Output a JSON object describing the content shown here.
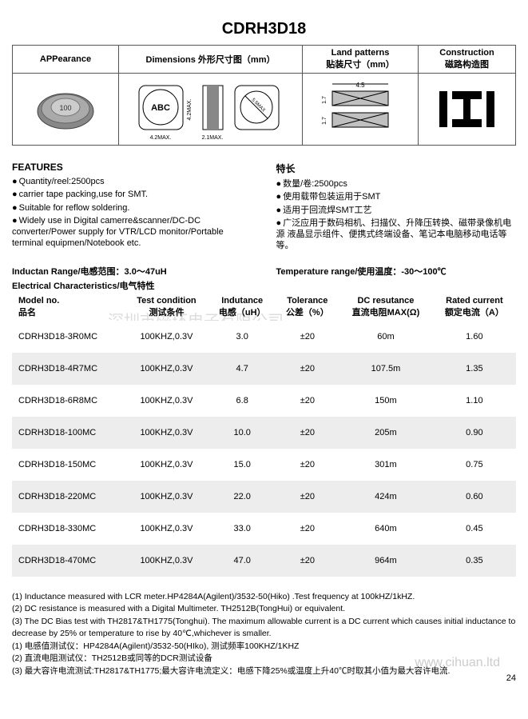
{
  "title": "CDRH3D18",
  "header": {
    "appearance": "APPearance",
    "dimensions": "Dimensions 外形尺寸图（mm）",
    "land": "Land patterns\n贴装尺寸（mm）",
    "construction": "Construction\n磁路构造图"
  },
  "dim_labels": {
    "abc": "ABC",
    "w": "4.2MAX.",
    "h": "4.2MAX.",
    "side_w": "2.1MAX.",
    "max55": "5.5MAX",
    "land_w": "4.5",
    "land_h1": "1.7",
    "land_h2": "1.7"
  },
  "features_en_head": "FEATURES",
  "features_en": [
    "Quantity/reel:2500pcs",
    "carrier tape packing,use for SMT.",
    "Suitable for reflow soldering.",
    "Widely use in Digital camerre&scanner/DC-DC converter/Power supply for VTR/LCD monitor/Portable terminal equipmen/Notebook etc."
  ],
  "features_cn_head": "特长",
  "features_cn": [
    "数量/卷:2500pcs",
    "使用载带包装运用于SMT",
    "适用于回流焊SMT工艺",
    "广泛应用于数码相机、扫描仪、升降压转换、磁带录像机电源 液晶显示组件、便携式终端设备、笔记本电脑移动电话等等。"
  ],
  "inductance_range": "Inductan Range/电感范围：3.0～47uH",
  "temp_range": "Temperature range/使用温度：-30～100℃",
  "elec_head": "Electrical Characteristics/电气特性",
  "columns": [
    {
      "l1": "Model no.",
      "l2": "品名"
    },
    {
      "l1": "Test condition",
      "l2": "测试条件"
    },
    {
      "l1": "Indutance",
      "l2": "电感（uH）"
    },
    {
      "l1": "Tolerance",
      "l2": "公差（%）"
    },
    {
      "l1": "DC resutance",
      "l2": "直流电阻MAX(Ω)"
    },
    {
      "l1": "Rated current",
      "l2": "额定电流（A）"
    }
  ],
  "rows": [
    {
      "model": "CDRH3D18-3R0MC",
      "cond": "100KHZ,0.3V",
      "ind": "3.0",
      "tol": "±20",
      "dcr": "60m",
      "rated": "1.60"
    },
    {
      "model": "CDRH3D18-4R7MC",
      "cond": "100KHZ,0.3V",
      "ind": "4.7",
      "tol": "±20",
      "dcr": "107.5m",
      "rated": "1.35"
    },
    {
      "model": "CDRH3D18-6R8MC",
      "cond": "100KHZ,0.3V",
      "ind": "6.8",
      "tol": "±20",
      "dcr": "150m",
      "rated": "1.10"
    },
    {
      "model": "CDRH3D18-100MC",
      "cond": "100KHZ,0.3V",
      "ind": "10.0",
      "tol": "±20",
      "dcr": "205m",
      "rated": "0.90"
    },
    {
      "model": "CDRH3D18-150MC",
      "cond": "100KHZ,0.3V",
      "ind": "15.0",
      "tol": "±20",
      "dcr": "301m",
      "rated": "0.75"
    },
    {
      "model": "CDRH3D18-220MC",
      "cond": "100KHZ,0.3V",
      "ind": "22.0",
      "tol": "±20",
      "dcr": "424m",
      "rated": "0.60"
    },
    {
      "model": "CDRH3D18-330MC",
      "cond": "100KHZ,0.3V",
      "ind": "33.0",
      "tol": "±20",
      "dcr": "640m",
      "rated": "0.45"
    },
    {
      "model": "CDRH3D18-470MC",
      "cond": "100KHZ,0.3V",
      "ind": "47.0",
      "tol": "±20",
      "dcr": "964m",
      "rated": "0.35"
    }
  ],
  "watermark": "深圳市磁环电子有限公司",
  "notes": [
    "(1) Inductance measured with LCR meter.HP4284A(Agilent)/3532-50(Hiko) .Test frequency at 100kHZ/1kHZ.",
    "(2) DC resistance is measured with a Digital Multimeter.   TH2512B(TongHui) or equivalent.",
    "(3) The DC Bias test with TH2817&TH1775(Tonghui). The maximum allowable current is a DC current which causes initial inductance to decrease by 25% or temperature to rise by 40℃,whichever is smaller.",
    "(1) 电感值测试仪：HP4284A(Agilent)/3532-50(HIko), 测试频率100KHZ/1KHZ",
    "(2) 直流电阻测试仪：TH2512B或同等的DCR测试设备",
    "(3) 最大容许电流测试:TH2817&TH1775;最大容许电流定义：电感下降25%或温度上升40℃时取其小值为最大容许电流."
  ],
  "url_watermark": "www.cihuan.ltd",
  "page_num": "24"
}
